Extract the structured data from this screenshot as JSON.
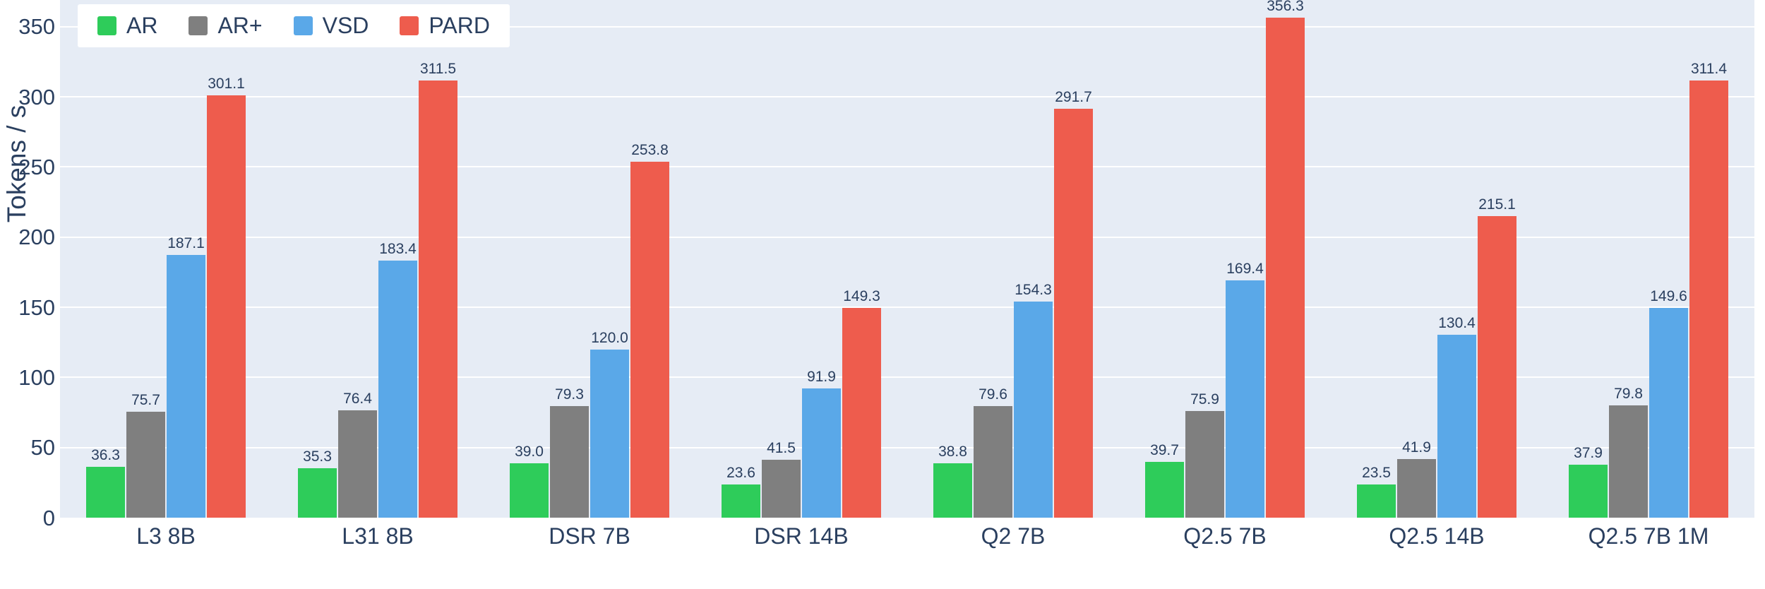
{
  "colors": {
    "text": "#2a3f5f",
    "plot_bg": "#e6ecf5",
    "grid": "#ffffff",
    "legend_bg": "#ffffff",
    "series": {
      "AR": "#2ecc5a",
      "AR+": "#7f7f7f",
      "VSD": "#5aa8e8",
      "PARD": "#ee5c4d"
    }
  },
  "chart_data": {
    "type": "bar",
    "title": "",
    "xlabel": "",
    "ylabel": "Tokens / s",
    "categories": [
      "L3 8B",
      "L31 8B",
      "DSR 7B",
      "DSR 14B",
      "Q2 7B",
      "Q2.5 7B",
      "Q2.5 14B",
      "Q2.5 7B 1M"
    ],
    "series": [
      {
        "name": "AR",
        "values": [
          36.3,
          35.3,
          39.0,
          23.6,
          38.8,
          39.7,
          23.5,
          37.9
        ]
      },
      {
        "name": "AR+",
        "values": [
          75.7,
          76.4,
          79.3,
          41.5,
          79.6,
          75.9,
          41.9,
          79.8
        ]
      },
      {
        "name": "VSD",
        "values": [
          187.1,
          183.4,
          120.0,
          91.9,
          154.3,
          169.4,
          130.4,
          149.6
        ]
      },
      {
        "name": "PARD",
        "values": [
          301.1,
          311.5,
          253.8,
          149.3,
          291.7,
          356.3,
          215.1,
          311.4
        ]
      }
    ],
    "yticks": [
      0,
      50,
      100,
      150,
      200,
      250,
      300,
      350
    ],
    "ylim": [
      0,
      369
    ],
    "grid": true,
    "legend_position": "top-left",
    "value_labels": true
  }
}
